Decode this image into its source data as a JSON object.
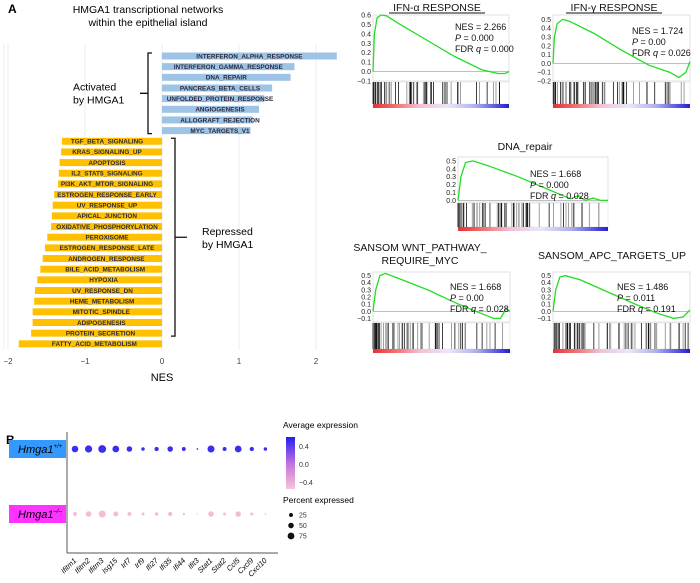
{
  "panel_labels": {
    "a": "A",
    "b": "B"
  },
  "chart_data": [
    {
      "type": "bar",
      "orientation": "horizontal",
      "title_lines": [
        "HMGA1 transcriptional networks",
        "within the epithelial island"
      ],
      "xlabel": "NES",
      "xlim": [
        -2,
        2.3
      ],
      "xticks": [
        "−2",
        "−1",
        "0",
        "1",
        "2"
      ],
      "xtick_values": [
        -2,
        -1,
        0,
        1,
        2
      ],
      "grid": true,
      "colors": {
        "activated": "#9dc3e6",
        "repressed": "#ffc000"
      },
      "groups": [
        {
          "label_lines": [
            "Activated",
            "by HMGA1"
          ],
          "start": 0,
          "end": 7
        },
        {
          "label_lines": [
            "Repressed",
            "by HMGA1"
          ],
          "start": 8,
          "end": 27
        }
      ],
      "categories": [
        "INTERFERON_ALPHA_RESPONSE",
        "INTERFERON_GAMMA_RESPONSE",
        "DNA_REPAIR",
        "PANCREAS_BETA_CELLS",
        "UNFOLDED_PROTEIN_RESPONSE",
        "ANGIOGENESIS",
        "ALLOGRAFT_REJECTION",
        "MYC_TARGETS_V1",
        "TGF_BETA_SIGNALING",
        "KRAS_SIGNALING_UP",
        "APOPTOSIS",
        "IL2_STAT5_SIGNALING",
        "PI3K_AKT_MTOR_SIGNALING",
        "ESTROGEN_RESPONSE_EARLY",
        "UV_RESPONSE_UP",
        "APICAL_JUNCTION",
        "OXIDATIVE_PHOSPHORYLATION",
        "PEROXISOME",
        "ESTROGEN_RESPONSE_LATE",
        "ANDROGEN_RESPONSE",
        "BILE_ACID_METABOLISM",
        "HYPOXIA",
        "UV_RESPONSE_DN",
        "HEME_METABOLISM",
        "MITOTIC_SPINDLE",
        "ADIPOGENESIS",
        "PROTEIN_SECRETION",
        "FATTY_ACID_METABOLISM"
      ],
      "values": [
        2.27,
        1.72,
        1.67,
        1.43,
        1.33,
        1.26,
        1.18,
        1.15,
        -1.3,
        -1.31,
        -1.33,
        -1.34,
        -1.35,
        -1.4,
        -1.42,
        -1.43,
        -1.44,
        -1.49,
        -1.52,
        -1.55,
        -1.58,
        -1.62,
        -1.65,
        -1.66,
        -1.68,
        -1.68,
        -1.7,
        -1.86
      ]
    },
    {
      "type": "line",
      "title_lines": [
        "IFN-α RESPONSE"
      ],
      "underlined": true,
      "yticks": [
        "0.6",
        "0.5",
        "0.4",
        "0.3",
        "0.2",
        "0.1",
        "0.0",
        "−0.1"
      ],
      "ylim": [
        -0.1,
        0.6
      ],
      "stats": {
        "nes": "NES = 2.266",
        "p_label": "P",
        "p": " = 0.000",
        "fdr_label": "FDR ",
        "q_label": "q",
        "fdr": " = 0.000"
      },
      "x": [
        0,
        0.01,
        0.03,
        0.06,
        0.1,
        0.2,
        0.4,
        0.6,
        0.8,
        0.92,
        0.97,
        1
      ],
      "y": [
        0,
        0.4,
        0.57,
        0.6,
        0.59,
        0.5,
        0.33,
        0.16,
        0.02,
        -0.02,
        -0.02,
        0
      ]
    },
    {
      "type": "line",
      "title_lines": [
        "IFN-γ RESPONSE"
      ],
      "underlined": true,
      "yticks": [
        "0.5",
        "0.4",
        "0.3",
        "0.2",
        "0.1",
        "0.0",
        "−0.1",
        "−0.2"
      ],
      "ylim": [
        -0.2,
        0.55
      ],
      "stats": {
        "nes": "NES = 1.724",
        "p_label": "P",
        "p": " = 0.00",
        "fdr_label": "FDR ",
        "q_label": "q",
        "fdr": " = 0.026"
      },
      "x": [
        0,
        0.01,
        0.03,
        0.07,
        0.12,
        0.3,
        0.5,
        0.7,
        0.85,
        0.92,
        0.97,
        1
      ],
      "y": [
        0,
        0.3,
        0.45,
        0.5,
        0.48,
        0.34,
        0.15,
        -0.02,
        -0.1,
        -0.16,
        -0.1,
        0.02
      ]
    },
    {
      "type": "line",
      "title_lines": [
        "DNA_repair"
      ],
      "underlined": false,
      "yticks": [
        "0.5",
        "0.4",
        "0.3",
        "0.2",
        "0.1",
        "0.0"
      ],
      "ylim": [
        -0.02,
        0.55
      ],
      "stats": {
        "nes": "NES = 1.668",
        "p_label": "P",
        "p": " = 0.000",
        "fdr_label": "FDR ",
        "q_label": "q",
        "fdr": " = 0.028"
      },
      "x": [
        0,
        0.02,
        0.05,
        0.1,
        0.2,
        0.4,
        0.6,
        0.7,
        0.75,
        0.8,
        0.85,
        0.9,
        0.95,
        1
      ],
      "y": [
        0,
        0.3,
        0.48,
        0.5,
        0.44,
        0.3,
        0.14,
        0.06,
        0.02,
        0.06,
        0.0,
        0.03,
        0.0,
        0.0
      ]
    },
    {
      "type": "line",
      "title_lines": [
        "SANSOM  WNT_PATHWAY_",
        "REQUIRE_MYC"
      ],
      "underlined": false,
      "yticks": [
        "0.5",
        "0.4",
        "0.3",
        "0.2",
        "0.1",
        "0.0",
        "−0.1"
      ],
      "ylim": [
        -0.15,
        0.55
      ],
      "stats": {
        "nes": "NES = 1.668",
        "p_label": "P",
        "p": " = 0.00",
        "fdr_label": "FDR ",
        "q_label": "q",
        "fdr": " = 0.028"
      },
      "x": [
        0,
        0.02,
        0.05,
        0.09,
        0.2,
        0.4,
        0.6,
        0.75,
        0.88,
        0.93,
        0.97,
        1
      ],
      "y": [
        0,
        0.3,
        0.5,
        0.53,
        0.45,
        0.3,
        0.12,
        0.0,
        -0.1,
        -0.1,
        0.03,
        0.0
      ]
    },
    {
      "type": "line",
      "title_lines": [
        "SANSOM_APC_TARGETS_UP"
      ],
      "underlined": false,
      "yticks": [
        "0.5",
        "0.4",
        "0.3",
        "0.2",
        "0.1",
        "0.0",
        "−0.1"
      ],
      "ylim": [
        -0.15,
        0.55
      ],
      "stats": {
        "nes": "NES = 1.486",
        "p_label": "P",
        "p": " = 0.011",
        "fdr_label": "FDR ",
        "q_label": "q",
        "fdr": " = 0.191"
      },
      "x": [
        0,
        0.02,
        0.05,
        0.09,
        0.2,
        0.4,
        0.6,
        0.75,
        0.88,
        0.95,
        1
      ],
      "y": [
        0,
        0.3,
        0.48,
        0.5,
        0.44,
        0.27,
        0.1,
        -0.02,
        -0.1,
        -0.08,
        0.02
      ]
    },
    {
      "type": "scatter",
      "subtype": "dot-plot",
      "row_labels": [
        {
          "base": "Hmga1",
          "sup": "+/+",
          "color": "#3399ff"
        },
        {
          "base": "Hmga1",
          "sup": "–/–",
          "color": "#ff33ff"
        }
      ],
      "genes": [
        "Ifitm1",
        "Ifitm2",
        "Ifitm3",
        "Isg15",
        "Irf7",
        "Irf9",
        "Ifi27",
        "Ifi35",
        "Ifi44",
        "Ifit3",
        "Stat1",
        "Stat2",
        "Ccl5",
        "Cxcl9",
        "Cxcl10"
      ],
      "percent_expressed": [
        [
          70,
          85,
          100,
          75,
          50,
          20,
          30,
          50,
          25,
          5,
          80,
          25,
          75,
          30,
          20
        ],
        [
          25,
          50,
          80,
          40,
          25,
          15,
          20,
          30,
          10,
          3,
          50,
          15,
          50,
          15,
          5
        ]
      ],
      "average_expression": [
        [
          0.5,
          0.5,
          0.5,
          0.5,
          0.5,
          0.5,
          0.5,
          0.5,
          0.5,
          0.5,
          0.5,
          0.5,
          0.5,
          0.5,
          0.5
        ],
        [
          -0.5,
          -0.5,
          -0.5,
          -0.5,
          -0.5,
          -0.5,
          -0.5,
          -0.5,
          -0.5,
          -0.5,
          -0.5,
          -0.5,
          -0.5,
          -0.5,
          -0.5
        ]
      ],
      "color_legend": {
        "title": "Average expression",
        "ticks": [
          "0.4",
          "0.0",
          "−0.4"
        ],
        "tick_values": [
          0.4,
          0,
          -0.4
        ],
        "low": "#f9c4d6",
        "mid": "#c070e0",
        "high": "#2020f0",
        "range": [
          -0.55,
          0.6
        ]
      },
      "size_legend": {
        "title": "Percent expressed",
        "ticks": [
          "25",
          "50",
          "75"
        ],
        "tick_values": [
          25,
          50,
          75
        ]
      }
    }
  ]
}
